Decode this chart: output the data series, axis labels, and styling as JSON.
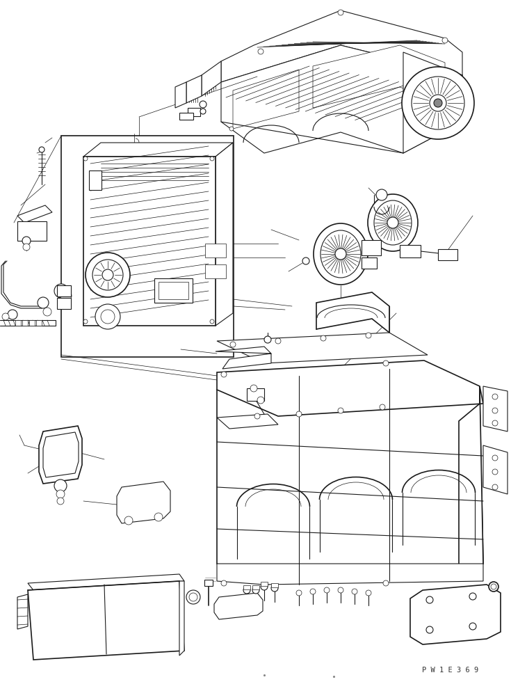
{
  "bg_color": "#ffffff",
  "lc": "#1a1a1a",
  "lw_thin": 0.5,
  "lw_med": 0.8,
  "lw_thick": 1.2,
  "watermark": "P W 1 E 3 6 9",
  "fig_w": 7.35,
  "fig_h": 9.8,
  "dpi": 100
}
